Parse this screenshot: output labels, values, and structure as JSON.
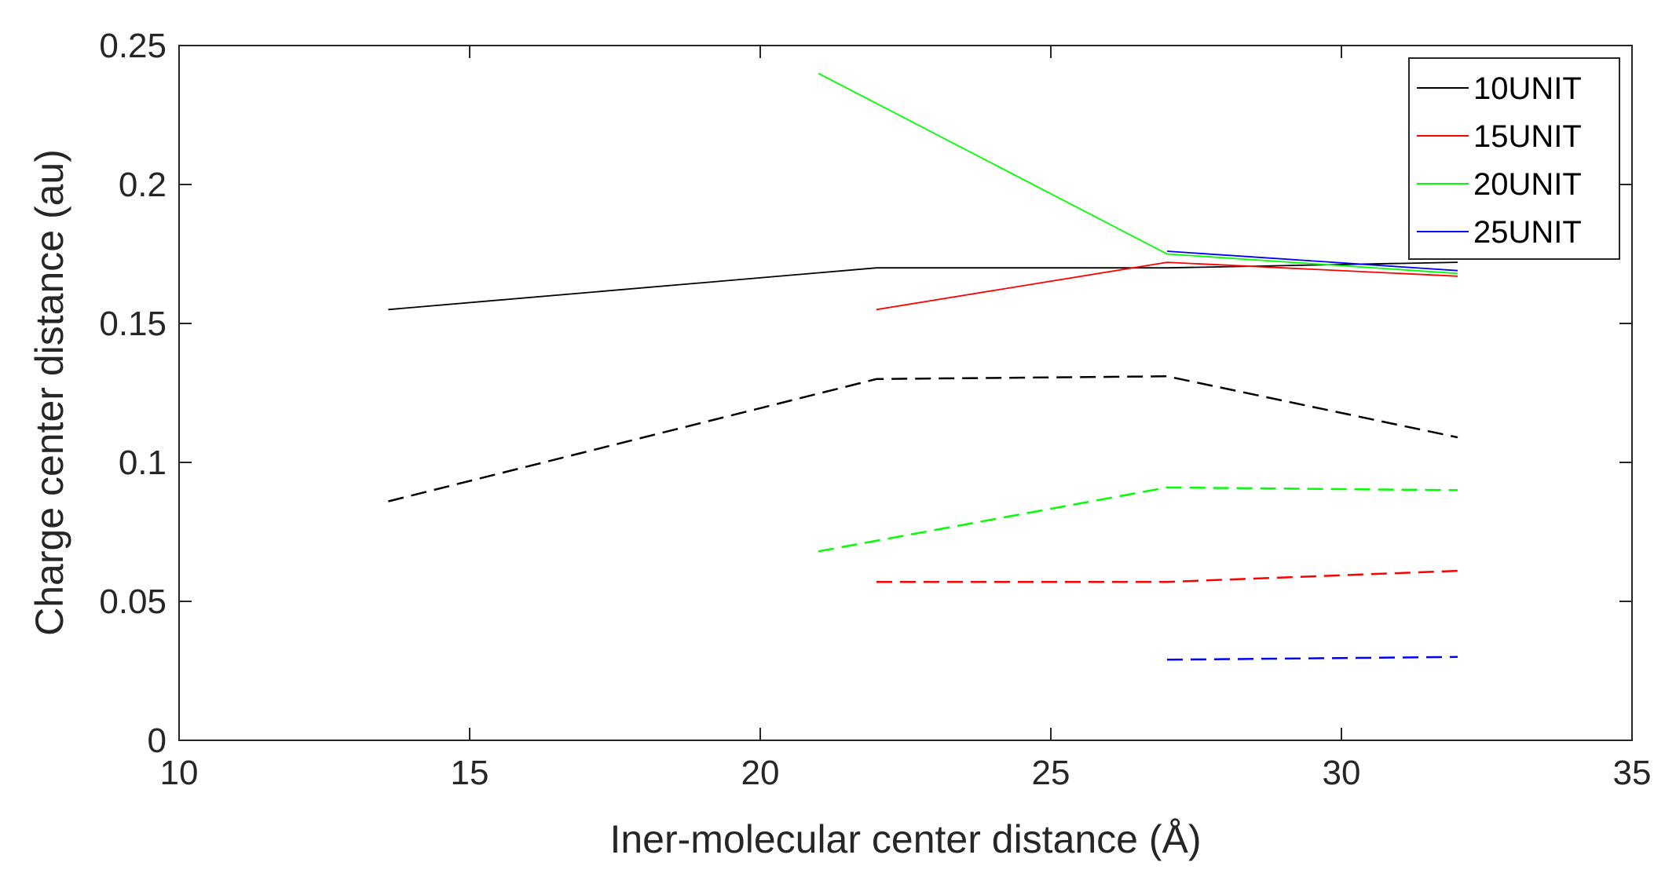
{
  "chart_data": {
    "type": "line",
    "title": "",
    "xlabel": "Iner-molecular center distance (Å)",
    "ylabel": "Charge center distance (au)",
    "xlim": [
      10,
      35
    ],
    "ylim": [
      0,
      0.25
    ],
    "xticks": [
      10,
      15,
      20,
      25,
      30,
      35
    ],
    "xtick_labels": [
      "10",
      "15",
      "20",
      "25",
      "30",
      "35"
    ],
    "yticks": [
      0,
      0.05,
      0.1,
      0.15,
      0.2,
      0.25
    ],
    "ytick_labels": [
      "0",
      "0.05",
      "0.1",
      "0.15",
      "0.2",
      "0.25"
    ],
    "grid": false,
    "legend_position": "top-right",
    "series": [
      {
        "name": "10UNIT",
        "color": "#000000",
        "style": "solid",
        "x": [
          13.6,
          22,
          27,
          32
        ],
        "y": [
          0.155,
          0.17,
          0.17,
          0.172
        ]
      },
      {
        "name": "15UNIT",
        "color": "#ff0000",
        "style": "solid",
        "x": [
          22,
          27,
          32
        ],
        "y": [
          0.155,
          0.172,
          0.167
        ]
      },
      {
        "name": "20UNIT",
        "color": "#00ff00",
        "style": "solid",
        "x": [
          21,
          27,
          32
        ],
        "y": [
          0.24,
          0.175,
          0.168
        ]
      },
      {
        "name": "25UNIT",
        "color": "#0000ff",
        "style": "solid",
        "x": [
          27,
          32
        ],
        "y": [
          0.176,
          0.169
        ]
      },
      {
        "color": "#000000",
        "style": "dashed",
        "x": [
          13.6,
          22,
          27,
          32
        ],
        "y": [
          0.086,
          0.13,
          0.131,
          0.109
        ]
      },
      {
        "color": "#ff0000",
        "style": "dashed",
        "x": [
          22,
          27,
          32
        ],
        "y": [
          0.057,
          0.057,
          0.061
        ]
      },
      {
        "color": "#00ff00",
        "style": "dashed",
        "x": [
          21,
          27,
          32
        ],
        "y": [
          0.068,
          0.091,
          0.09
        ]
      },
      {
        "color": "#0000ff",
        "style": "dashed",
        "x": [
          27,
          32
        ],
        "y": [
          0.029,
          0.03
        ]
      }
    ]
  }
}
